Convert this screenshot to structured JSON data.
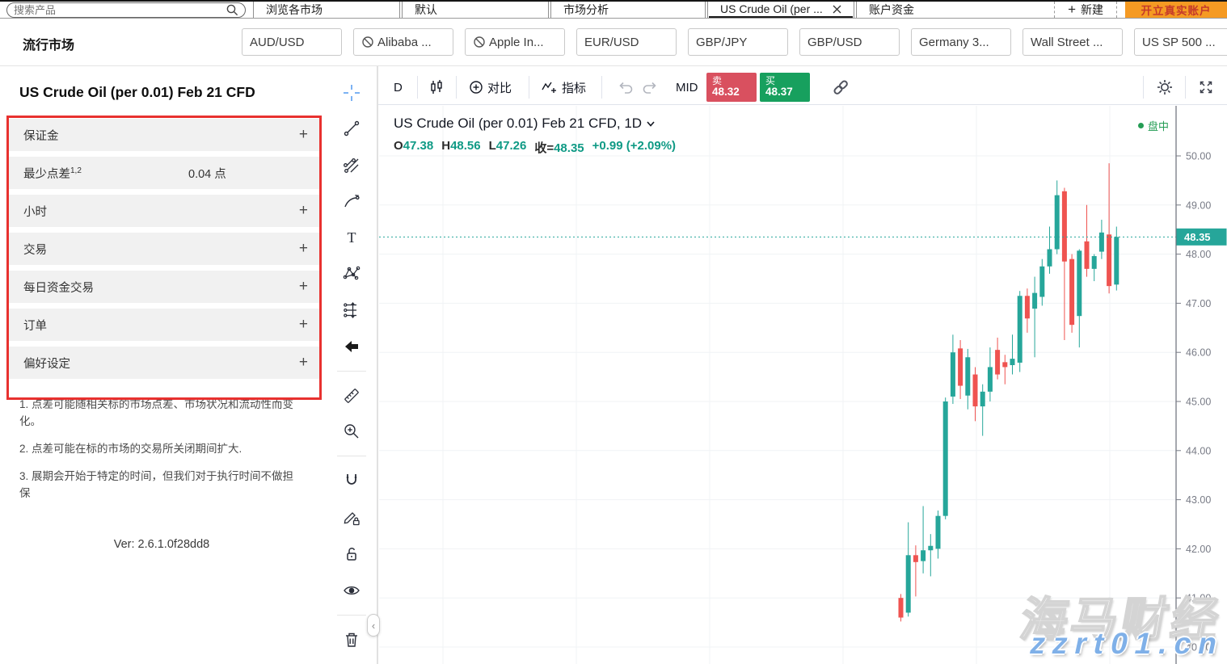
{
  "icons": {
    "plus": "+",
    "collapse": "‹"
  },
  "top_tabs": {
    "search_placeholder": "搜索产品",
    "tabs": [
      {
        "label": "浏览各市场"
      },
      {
        "label": "默认"
      },
      {
        "label": "市场分析"
      },
      {
        "label": "US Crude Oil (per ...",
        "active": true,
        "closable": true
      },
      {
        "label": "账户资金"
      }
    ],
    "new_tab_label": "新建",
    "cta_label": "开立真实账户"
  },
  "markets": {
    "label": "流行市场",
    "items": [
      {
        "label": "AUD/USD"
      },
      {
        "label": "Alibaba ...",
        "restricted": true
      },
      {
        "label": "Apple In...",
        "restricted": true
      },
      {
        "label": "EUR/USD"
      },
      {
        "label": "GBP/JPY"
      },
      {
        "label": "GBP/USD"
      },
      {
        "label": "Germany 3..."
      },
      {
        "label": "Wall Street ..."
      },
      {
        "label": "US SP 500 ..."
      }
    ]
  },
  "panel": {
    "title": "US Crude Oil (per 0.01) Feb 21 CFD",
    "rows": [
      {
        "label": "保证金"
      },
      {
        "label": "最少点差",
        "sup": "1,2",
        "value": "0.04 点"
      },
      {
        "label": "小时"
      },
      {
        "label": "交易"
      },
      {
        "label": "每日资金交易"
      },
      {
        "label": "订单"
      },
      {
        "label": "偏好设定"
      }
    ],
    "footnotes": [
      "1. 点差可能随相关标的市场点差、市场状况和流动性而变化。",
      "2. 点差可能在标的市场的交易所关闭期间扩大.",
      "3. 展期会开始于特定的时间，但我们对于执行时间不做担保"
    ],
    "version": "Ver: 2.6.1.0f28dd8"
  },
  "drawing_toolbar": {
    "tools": [
      "crosshair",
      "trend-line",
      "fib-gann-tools",
      "brush",
      "text",
      "xabcd-pattern",
      "long-position",
      "arrow",
      "ruler",
      "zoom-in",
      "magnet",
      "drawing-edit-lock",
      "lock-open",
      "eye",
      "trash"
    ]
  },
  "chart_toolbar": {
    "interval": "D",
    "compare_label": "对比",
    "indicators_label": "指标",
    "mid_label": "MID",
    "sell_label": "卖",
    "sell_price": "48.32",
    "buy_label": "买",
    "buy_price": "48.37"
  },
  "legend": {
    "title": "US Crude Oil (per 0.01) Feb 21 CFD, 1D",
    "o_label": "O",
    "o": "47.38",
    "h_label": "H",
    "h": "48.56",
    "l_label": "L",
    "l": "47.26",
    "close_label": "收=",
    "close": "48.35",
    "change": "+0.99 (+2.09%)",
    "status": "盘中"
  },
  "watermark": {
    "line1": "海马财经",
    "line2": "zzrt01.cn"
  },
  "colors": {
    "up": "#26a69a",
    "down": "#ef5350",
    "sell_btn": "#d9505f",
    "buy_btn": "#17a05e",
    "accent_orange": "#f59a23",
    "highlight_box": "#e8312f",
    "last_price_tag": "#26a69a",
    "axis_text": "#787b86",
    "grid": "#f0f3f5",
    "teal_text": "#0f9a85"
  },
  "chart_data": {
    "type": "candlestick",
    "title": "US Crude Oil (per 0.01) Feb 21 CFD, 1D",
    "last_price": 48.35,
    "change": "+0.99 (+2.09%)",
    "y_axis": {
      "min": 40.0,
      "max": 50.3,
      "ticks": [
        50.0,
        49.0,
        48.0,
        47.0,
        46.0,
        45.0,
        44.0,
        43.0,
        42.0,
        41.0,
        40.0
      ]
    },
    "grid": true,
    "candles": [
      {
        "o": 41.0,
        "h": 41.08,
        "l": 40.52,
        "c": 40.6
      },
      {
        "o": 40.7,
        "h": 42.54,
        "l": 40.62,
        "c": 41.87
      },
      {
        "o": 41.87,
        "h": 42.07,
        "l": 41.03,
        "c": 41.73
      },
      {
        "o": 41.75,
        "h": 42.87,
        "l": 41.5,
        "c": 41.97
      },
      {
        "o": 41.97,
        "h": 42.3,
        "l": 41.44,
        "c": 42.06
      },
      {
        "o": 42.0,
        "h": 42.78,
        "l": 41.8,
        "c": 42.67
      },
      {
        "o": 42.67,
        "h": 45.08,
        "l": 42.6,
        "c": 45.0
      },
      {
        "o": 45.1,
        "h": 46.36,
        "l": 44.95,
        "c": 46.0
      },
      {
        "o": 46.08,
        "h": 46.25,
        "l": 45.05,
        "c": 45.32
      },
      {
        "o": 45.12,
        "h": 46.07,
        "l": 44.84,
        "c": 45.9
      },
      {
        "o": 45.55,
        "h": 45.7,
        "l": 44.6,
        "c": 44.9
      },
      {
        "o": 44.9,
        "h": 45.35,
        "l": 44.3,
        "c": 45.2
      },
      {
        "o": 45.2,
        "h": 46.1,
        "l": 45.0,
        "c": 45.7
      },
      {
        "o": 46.05,
        "h": 46.3,
        "l": 45.45,
        "c": 45.55
      },
      {
        "o": 45.8,
        "h": 45.95,
        "l": 45.35,
        "c": 45.7
      },
      {
        "o": 45.74,
        "h": 46.36,
        "l": 45.55,
        "c": 45.87
      },
      {
        "o": 45.79,
        "h": 47.25,
        "l": 45.6,
        "c": 47.15
      },
      {
        "o": 47.15,
        "h": 47.3,
        "l": 46.4,
        "c": 46.69
      },
      {
        "o": 46.89,
        "h": 47.54,
        "l": 45.9,
        "c": 47.21
      },
      {
        "o": 47.13,
        "h": 47.9,
        "l": 46.95,
        "c": 47.75
      },
      {
        "o": 47.75,
        "h": 48.56,
        "l": 47.6,
        "c": 48.1
      },
      {
        "o": 48.1,
        "h": 49.5,
        "l": 48.0,
        "c": 49.2
      },
      {
        "o": 49.28,
        "h": 49.35,
        "l": 46.25,
        "c": 47.85
      },
      {
        "o": 47.9,
        "h": 48.0,
        "l": 46.4,
        "c": 46.56
      },
      {
        "o": 46.74,
        "h": 48.1,
        "l": 46.1,
        "c": 48.07
      },
      {
        "o": 48.26,
        "h": 49.0,
        "l": 47.54,
        "c": 47.7
      },
      {
        "o": 47.7,
        "h": 48.0,
        "l": 47.45,
        "c": 47.96
      },
      {
        "o": 48.05,
        "h": 48.7,
        "l": 47.9,
        "c": 48.44
      },
      {
        "o": 48.4,
        "h": 49.85,
        "l": 47.2,
        "c": 47.35
      },
      {
        "o": 47.38,
        "h": 48.56,
        "l": 47.26,
        "c": 48.35
      }
    ]
  }
}
